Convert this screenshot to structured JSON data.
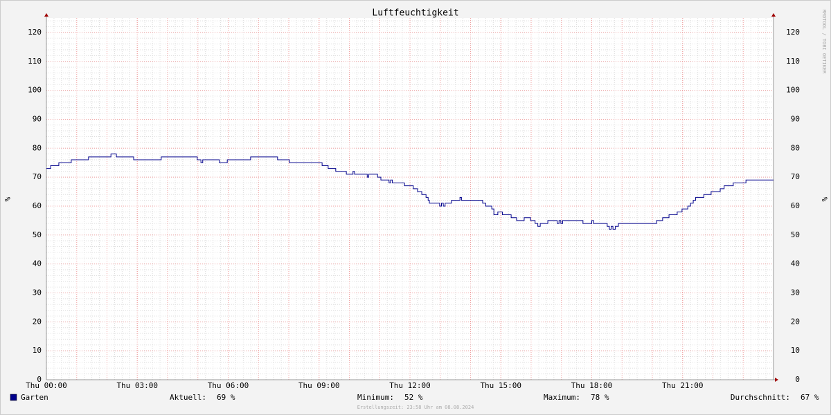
{
  "chart_data": {
    "type": "step-line",
    "title": "Luftfeuchtigkeit",
    "y_label": "%",
    "watermark": "RRDTOOL / TOBI OETIKER",
    "footer": "Erstellungszeit: 23:58 Uhr am 08.08.2024",
    "xlim": [
      0,
      24
    ],
    "xticks": [
      {
        "value": 0,
        "label": "Thu 00:00"
      },
      {
        "value": 3,
        "label": "Thu 03:00"
      },
      {
        "value": 6,
        "label": "Thu 06:00"
      },
      {
        "value": 9,
        "label": "Thu 09:00"
      },
      {
        "value": 12,
        "label": "Thu 12:00"
      },
      {
        "value": 15,
        "label": "Thu 15:00"
      },
      {
        "value": 18,
        "label": "Thu 18:00"
      },
      {
        "value": 21,
        "label": "Thu 21:00"
      }
    ],
    "ylim": [
      0,
      125
    ],
    "yticks": [
      0,
      10,
      20,
      30,
      40,
      50,
      60,
      70,
      80,
      90,
      100,
      110,
      120
    ],
    "grid": true,
    "series": [
      {
        "name": "Garten",
        "color": "#00008b",
        "x": [
          0,
          0.14,
          0.41,
          0.82,
          1.39,
          2.13,
          2.31,
          2.88,
          3.79,
          4.98,
          5.1,
          5.16,
          5.71,
          5.97,
          6.74,
          7.63,
          8.02,
          9.1,
          9.3,
          9.55,
          9.9,
          10.12,
          10.17,
          10.59,
          10.64,
          10.93,
          11.04,
          11.31,
          11.36,
          11.42,
          11.82,
          12.11,
          12.25,
          12.39,
          12.53,
          12.6,
          12.64,
          12.98,
          13.04,
          13.1,
          13.16,
          13.37,
          13.65,
          13.7,
          14.4,
          14.5,
          14.7,
          14.77,
          14.9,
          15.05,
          15.34,
          15.52,
          15.77,
          15.98,
          16.13,
          16.22,
          16.3,
          16.55,
          16.86,
          16.92,
          16.98,
          17.04,
          17.71,
          18.0,
          18.06,
          18.51,
          18.58,
          18.64,
          18.7,
          18.78,
          18.88,
          20.14,
          20.34,
          20.55,
          20.82,
          20.98,
          21.17,
          21.26,
          21.35,
          21.43,
          21.7,
          21.94,
          22.24,
          22.37,
          22.67,
          23.09,
          24
        ],
        "values": [
          73,
          74,
          75,
          76,
          77,
          78,
          77,
          76,
          77,
          76,
          75,
          76,
          75,
          76,
          77,
          76,
          75,
          74,
          73,
          72,
          71,
          72,
          71,
          70,
          71,
          70,
          69,
          68,
          69,
          68,
          67,
          66,
          65,
          64,
          63,
          62,
          61,
          60,
          61,
          60,
          61,
          62,
          63,
          62,
          61,
          60,
          59,
          57,
          58,
          57,
          56,
          55,
          56,
          55,
          54,
          53,
          54,
          55,
          54,
          55,
          54,
          55,
          54,
          55,
          54,
          53,
          52,
          53,
          52,
          53,
          54,
          55,
          56,
          57,
          58,
          59,
          60,
          61,
          62,
          63,
          64,
          65,
          66,
          67,
          68,
          69,
          69
        ]
      }
    ],
    "stats": [
      {
        "label": "Aktuell:",
        "text": "69 %"
      },
      {
        "label": "Minimum:",
        "text": "52 %"
      },
      {
        "label": "Maximum:",
        "text": "78 %"
      },
      {
        "label": "Durchschnitt:",
        "text": "67 %"
      }
    ]
  }
}
